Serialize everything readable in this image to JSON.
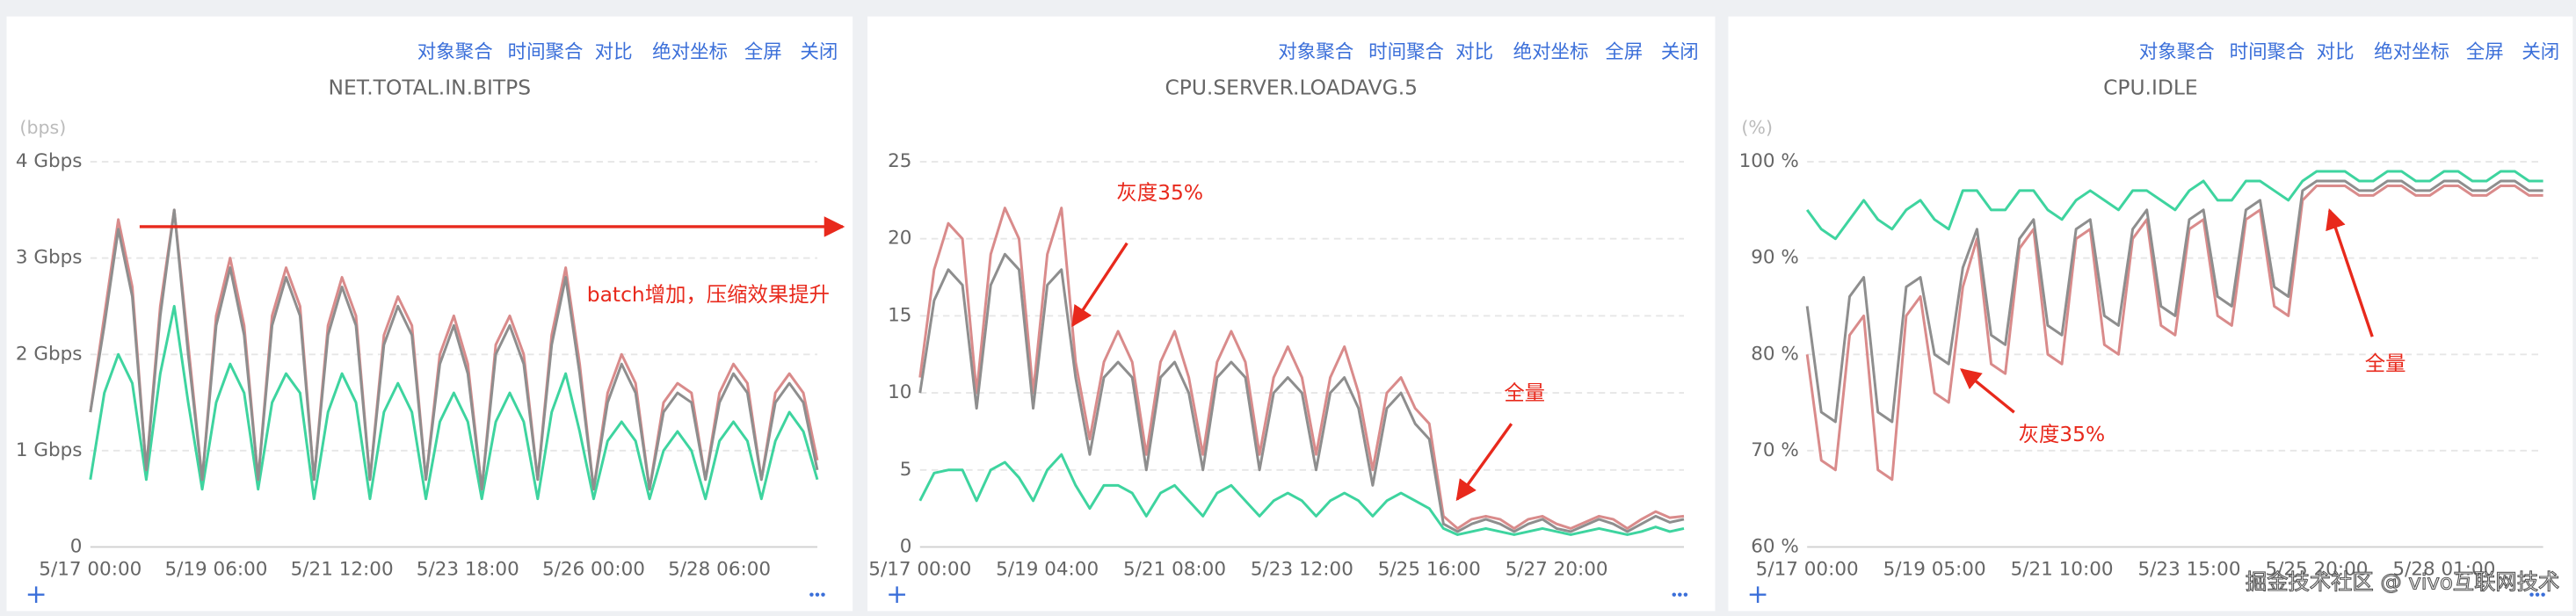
{
  "toolbar": [
    "对象聚合",
    "时间聚合",
    "对比",
    "绝对坐标",
    "全屏",
    "关闭"
  ],
  "watermark": "掘金技术社区 @ vivo互联网技术",
  "chart_data": [
    {
      "type": "line",
      "title": "NET.TOTAL.IN.BITPS",
      "unit_label": "(bps)",
      "categories": [
        "5/17 00:00",
        null,
        null,
        null,
        null,
        null,
        null,
        null,
        null,
        "5/19 06:00",
        null,
        null,
        null,
        null,
        null,
        null,
        null,
        null,
        "5/21 12:00",
        null,
        null,
        null,
        null,
        null,
        null,
        null,
        null,
        "5/23 18:00",
        null,
        null,
        null,
        null,
        null,
        null,
        null,
        null,
        "5/26 00:00",
        null,
        null,
        null,
        null,
        null,
        null,
        null,
        null,
        "5/28 06:00",
        null,
        null,
        null,
        null,
        null,
        null,
        null
      ],
      "ylim": [
        0,
        4.4
      ],
      "yticks": [
        0,
        {
          "value": 1,
          "label": "1 Gbps"
        },
        {
          "value": 2,
          "label": "2 Gbps"
        },
        {
          "value": 3,
          "label": "3 Gbps"
        },
        {
          "value": 4,
          "label": "4 Gbps"
        }
      ],
      "grid": true,
      "series": [
        {
          "color": "#3ed49f",
          "values": [
            0.7,
            1.6,
            2.0,
            1.7,
            0.7,
            1.8,
            2.5,
            1.5,
            0.6,
            1.5,
            1.9,
            1.6,
            0.6,
            1.5,
            1.8,
            1.6,
            0.5,
            1.4,
            1.8,
            1.5,
            0.5,
            1.4,
            1.7,
            1.4,
            0.5,
            1.3,
            1.6,
            1.3,
            0.5,
            1.3,
            1.6,
            1.3,
            0.5,
            1.4,
            1.8,
            1.2,
            0.5,
            1.1,
            1.3,
            1.1,
            0.5,
            1.0,
            1.2,
            1.0,
            0.5,
            1.1,
            1.3,
            1.1,
            0.5,
            1.1,
            1.4,
            1.2,
            0.7
          ]
        },
        {
          "color": "#d98b8b",
          "values": [
            1.4,
            2.4,
            3.4,
            2.7,
            0.8,
            2.5,
            3.5,
            2.1,
            0.7,
            2.4,
            3.0,
            2.3,
            0.7,
            2.4,
            2.9,
            2.5,
            0.7,
            2.3,
            2.8,
            2.4,
            0.7,
            2.2,
            2.6,
            2.3,
            0.7,
            2.0,
            2.4,
            1.9,
            0.6,
            2.1,
            2.4,
            2.0,
            0.7,
            2.2,
            2.9,
            1.9,
            0.6,
            1.6,
            2.0,
            1.7,
            0.6,
            1.5,
            1.7,
            1.6,
            0.7,
            1.6,
            1.9,
            1.7,
            0.7,
            1.6,
            1.8,
            1.6,
            0.9
          ]
        },
        {
          "color": "#8e8e8e",
          "values": [
            1.4,
            2.3,
            3.3,
            2.6,
            0.8,
            2.4,
            3.5,
            2.0,
            0.7,
            2.3,
            2.9,
            2.2,
            0.7,
            2.3,
            2.8,
            2.4,
            0.7,
            2.2,
            2.7,
            2.3,
            0.7,
            2.1,
            2.5,
            2.2,
            0.7,
            1.9,
            2.3,
            1.8,
            0.6,
            2.0,
            2.3,
            1.9,
            0.7,
            2.1,
            2.8,
            1.8,
            0.6,
            1.5,
            1.9,
            1.6,
            0.6,
            1.4,
            1.6,
            1.5,
            0.7,
            1.5,
            1.8,
            1.6,
            0.7,
            1.5,
            1.7,
            1.5,
            0.8
          ]
        }
      ],
      "annotations": [
        {
          "text": "batch增加，压缩效果提升"
        }
      ]
    },
    {
      "type": "line",
      "title": "CPU.SERVER.LOADAVG.5",
      "categories": [
        "5/17 00:00",
        null,
        null,
        null,
        null,
        null,
        null,
        null,
        null,
        "5/19 04:00",
        null,
        null,
        null,
        null,
        null,
        null,
        null,
        null,
        "5/21 08:00",
        null,
        null,
        null,
        null,
        null,
        null,
        null,
        null,
        "5/23 12:00",
        null,
        null,
        null,
        null,
        null,
        null,
        null,
        null,
        "5/25 16:00",
        null,
        null,
        null,
        null,
        null,
        null,
        null,
        null,
        "5/27 20:00",
        null,
        null,
        null,
        null,
        null,
        null,
        null,
        null,
        null
      ],
      "ylim": [
        0,
        27.5
      ],
      "yticks": [
        0,
        5,
        10,
        15,
        20,
        25
      ],
      "grid": true,
      "series": [
        {
          "color": "#3ed49f",
          "values": [
            3,
            4.8,
            5,
            5,
            3,
            5,
            5.5,
            4.5,
            3,
            5,
            6,
            4,
            2.5,
            4,
            4,
            3.5,
            2,
            3.5,
            4,
            3,
            2,
            3.5,
            4,
            3,
            2,
            3,
            3.5,
            3,
            2,
            3,
            3.5,
            3,
            2,
            3,
            3.5,
            3,
            2.5,
            1.2,
            0.8,
            1,
            1.2,
            1,
            0.8,
            1,
            1.2,
            1,
            0.8,
            1,
            1.2,
            1,
            0.8,
            1,
            1.3,
            1,
            1.2
          ]
        },
        {
          "color": "#d98b8b",
          "values": [
            11,
            18,
            21,
            20,
            10,
            19,
            22,
            20,
            10,
            19,
            22,
            12,
            7,
            12,
            14,
            12,
            6,
            12,
            14,
            11,
            6,
            12,
            14,
            12,
            6,
            11,
            13,
            11,
            6,
            11,
            13,
            10,
            5,
            10,
            11,
            9,
            8,
            2,
            1.2,
            1.8,
            2,
            1.8,
            1.2,
            1.8,
            2,
            1.5,
            1.2,
            1.6,
            2,
            1.8,
            1.2,
            1.8,
            2.3,
            1.9,
            2
          ]
        },
        {
          "color": "#8e8e8e",
          "values": [
            10,
            16,
            18,
            17,
            9,
            17,
            19,
            18,
            9,
            17,
            18,
            11,
            6,
            11,
            12,
            11,
            5,
            11,
            12,
            10,
            5,
            11,
            12,
            11,
            5,
            10,
            11,
            10,
            5,
            10,
            11,
            9,
            4,
            9,
            10,
            8,
            7,
            1.5,
            1,
            1.5,
            1.8,
            1.5,
            1,
            1.5,
            1.8,
            1.2,
            1,
            1.4,
            1.8,
            1.5,
            1,
            1.5,
            2,
            1.6,
            1.8
          ]
        }
      ],
      "annotations": [
        {
          "text": "灰度35%"
        },
        {
          "text": "全量"
        }
      ]
    },
    {
      "type": "line",
      "title": "CPU.IDLE",
      "unit_label": "(%)",
      "categories": [
        "5/17 00:00",
        null,
        null,
        null,
        null,
        null,
        null,
        null,
        null,
        "5/19 05:00",
        null,
        null,
        null,
        null,
        null,
        null,
        null,
        null,
        "5/21 10:00",
        null,
        null,
        null,
        null,
        null,
        null,
        null,
        null,
        "5/23 15:00",
        null,
        null,
        null,
        null,
        null,
        null,
        null,
        null,
        "5/25 20:00",
        null,
        null,
        null,
        null,
        null,
        null,
        null,
        null,
        "5/28 01:00",
        null,
        null,
        null,
        null,
        null,
        null,
        null
      ],
      "ylim": [
        60,
        104
      ],
      "yticks": [
        {
          "value": 60,
          "label": "60 %"
        },
        {
          "value": 70,
          "label": "70 %"
        },
        {
          "value": 80,
          "label": "80 %"
        },
        {
          "value": 90,
          "label": "90 %"
        },
        {
          "value": 100,
          "label": "100 %"
        }
      ],
      "grid": true,
      "series": [
        {
          "color": "#3ed49f",
          "values": [
            95,
            93,
            92,
            94,
            96,
            94,
            93,
            95,
            96,
            94,
            93,
            97,
            97,
            95,
            95,
            97,
            97,
            95,
            94,
            96,
            97,
            96,
            95,
            97,
            97,
            96,
            95,
            97,
            98,
            96,
            96,
            98,
            98,
            97,
            96,
            98,
            99,
            99,
            99,
            98,
            98,
            99,
            99,
            98,
            98,
            99,
            99,
            98,
            98,
            99,
            99,
            98,
            98
          ]
        },
        {
          "color": "#d98b8b",
          "values": [
            80,
            69,
            68,
            82,
            84,
            68,
            67,
            84,
            86,
            76,
            75,
            87,
            92,
            79,
            78,
            91,
            93,
            80,
            79,
            92,
            93,
            81,
            80,
            92,
            94,
            83,
            82,
            93,
            94,
            84,
            83,
            94,
            95,
            85,
            84,
            96,
            97.5,
            97.5,
            97.5,
            96.5,
            96.5,
            97.5,
            97.5,
            96.5,
            96.5,
            97.5,
            97.5,
            96.5,
            96.5,
            97.5,
            97.5,
            96.5,
            96.5
          ]
        },
        {
          "color": "#8e8e8e",
          "values": [
            85,
            74,
            73,
            86,
            88,
            74,
            73,
            87,
            88,
            80,
            79,
            89,
            93,
            82,
            81,
            92,
            94,
            83,
            82,
            93,
            94,
            84,
            83,
            93,
            95,
            85,
            84,
            94,
            95,
            86,
            85,
            95,
            96,
            87,
            86,
            97,
            98,
            98,
            98,
            97,
            97,
            98,
            98,
            97,
            97,
            98,
            98,
            97,
            97,
            98,
            98,
            97,
            97
          ]
        }
      ],
      "annotations": [
        {
          "text": "灰度35%"
        },
        {
          "text": "全量"
        }
      ]
    }
  ]
}
